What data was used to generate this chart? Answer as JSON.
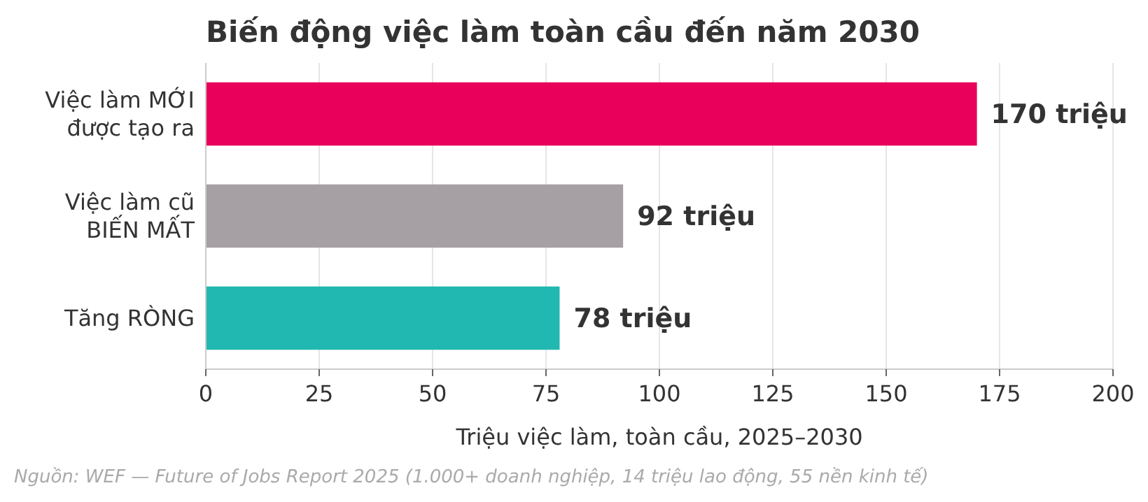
{
  "chart_data": {
    "type": "bar",
    "orientation": "horizontal",
    "title": "Biến động việc làm toàn cầu đến năm 2030",
    "categories": [
      "Việc làm MỚI\nđược tạo ra",
      "Việc làm cũ\nBIẾN MẤT",
      "Tăng RÒNG"
    ],
    "values": [
      170,
      92,
      78
    ],
    "colors": [
      "#e8005a",
      "#a69fa3",
      "#20b8b0"
    ],
    "value_labels": [
      "170 triệu",
      "92 triệu",
      "78 triệu"
    ],
    "xlabel": "Triệu việc làm, toàn cầu, 2025–2030",
    "xlim": [
      0,
      200
    ],
    "xticks": [
      0,
      25,
      50,
      75,
      100,
      125,
      150,
      175,
      200
    ],
    "grid": "x",
    "annotations": [
      "Nguồn: WEF — Future of Jobs Report 2025 (1.000+ doanh nghiệp, 14 triệu lao động, 55 nền kinh tế)"
    ]
  }
}
